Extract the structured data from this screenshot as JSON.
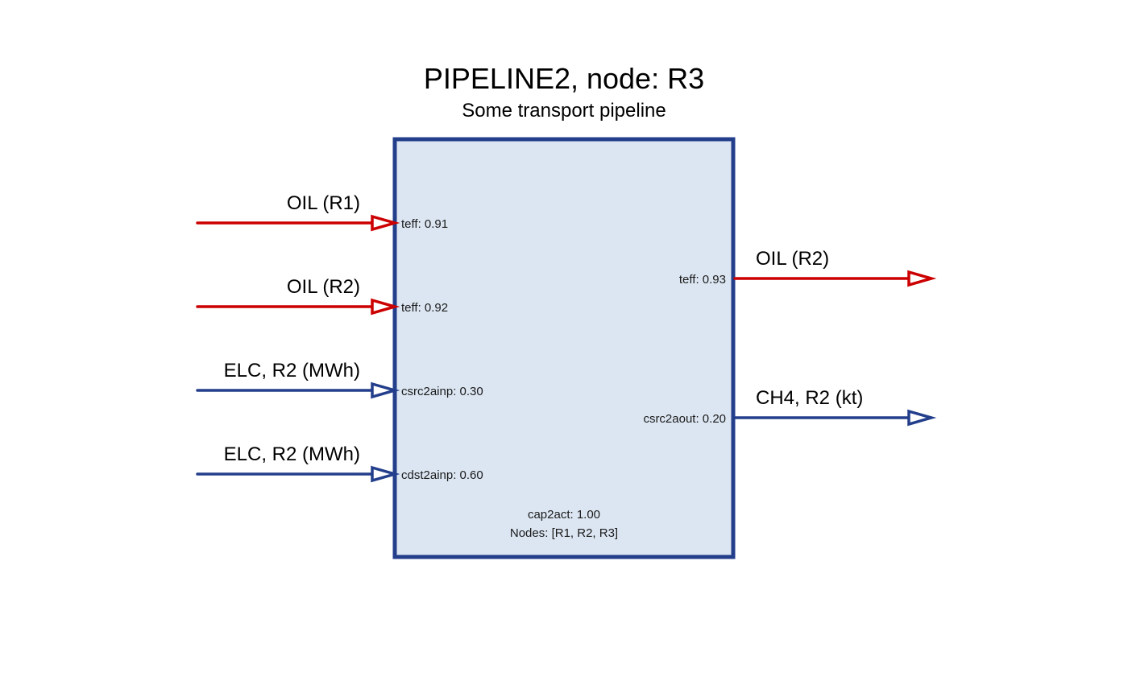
{
  "title": "PIPELINE2, node: R3",
  "subtitle": "Some transport pipeline",
  "colors": {
    "box_fill": "#dce6f2",
    "box_border": "#233e8b",
    "commodity_red": "#cc0000",
    "commodity_blue": "#233e8b"
  },
  "inputs": [
    {
      "label": "OIL (R1)",
      "param": "teff: 0.91",
      "color": "red"
    },
    {
      "label": "OIL (R2)",
      "param": "teff: 0.92",
      "color": "red"
    },
    {
      "label": "ELC, R2 (MWh)",
      "param": "csrc2ainp: 0.30",
      "color": "blue"
    },
    {
      "label": "ELC, R2 (MWh)",
      "param": "cdst2ainp: 0.60",
      "color": "blue"
    }
  ],
  "outputs": [
    {
      "label": "OIL (R2)",
      "param": "teff: 0.93",
      "color": "red"
    },
    {
      "label": "CH4, R2 (kt)",
      "param": "csrc2aout: 0.20",
      "color": "blue"
    }
  ],
  "process": {
    "cap2act": "cap2act: 1.00",
    "nodes": "Nodes: [R1, R2, R3]"
  }
}
